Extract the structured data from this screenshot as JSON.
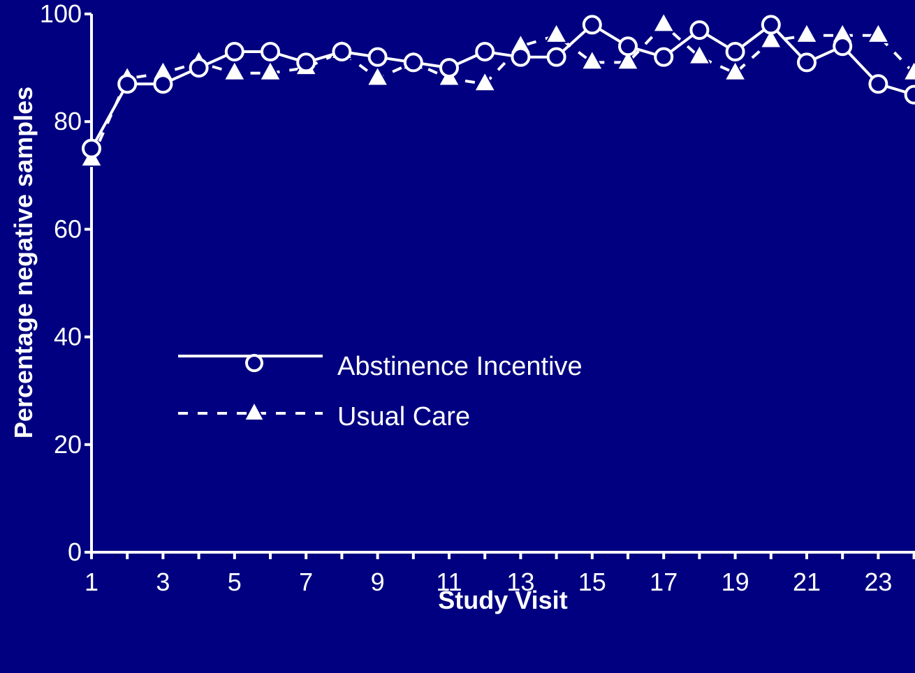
{
  "colors": {
    "background": "#000080",
    "foreground": "#ffffff"
  },
  "chart_data": {
    "type": "line",
    "title": "",
    "xlabel": "Study Visit",
    "ylabel": "Percentage negative samples",
    "xlim": [
      1,
      24
    ],
    "ylim": [
      0,
      100
    ],
    "x_tick_labels": [
      1,
      3,
      5,
      7,
      9,
      11,
      13,
      15,
      17,
      19,
      21,
      23
    ],
    "y_tick_labels": [
      0,
      20,
      40,
      60,
      80,
      100
    ],
    "grid": false,
    "legend_position": "center-left",
    "x": [
      1,
      2,
      3,
      4,
      5,
      6,
      7,
      8,
      9,
      10,
      11,
      12,
      13,
      14,
      15,
      16,
      17,
      18,
      19,
      20,
      21,
      22,
      23,
      24
    ],
    "series": [
      {
        "name": "Abstinence Incentive",
        "marker": "circle",
        "line_style": "solid",
        "values": [
          75,
          87,
          87,
          90,
          93,
          93,
          91,
          93,
          92,
          91,
          90,
          93,
          92,
          92,
          98,
          94,
          92,
          97,
          93,
          98,
          91,
          94,
          87,
          85
        ]
      },
      {
        "name": "Usual Care",
        "marker": "triangle",
        "line_style": "dashed",
        "values": [
          73,
          88,
          89,
          91,
          89,
          89,
          90,
          93,
          88,
          91,
          88,
          87,
          94,
          96,
          91,
          91,
          98,
          92,
          89,
          95,
          96,
          96,
          96,
          89
        ]
      }
    ]
  }
}
